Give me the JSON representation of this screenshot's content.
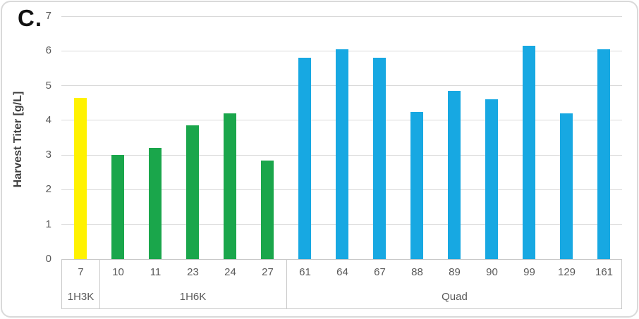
{
  "panel_label": "C.",
  "colors": {
    "grid": "#d9d9d9",
    "frame_border": "#d9d9d9",
    "box_border": "#c9c9c9",
    "axis_text": "#595959",
    "axis_title_text": "#3f3f3f",
    "group_1h3k": "#fff200",
    "group_1h6k": "#1aa64b",
    "group_quad": "#17a8e2"
  },
  "chart_data": {
    "type": "bar",
    "title": "",
    "xlabel": "",
    "ylabel": "Harvest Titer [g/L]",
    "ylim": [
      0,
      7
    ],
    "ytick_labels": [
      "0",
      "1",
      "2",
      "3",
      "4",
      "5",
      "6",
      "7"
    ],
    "grid": true,
    "legend": "none",
    "axis_style": "two-level category axis with group separator lines",
    "groups": [
      {
        "name": "1H3K",
        "color": "#fff200",
        "bars": [
          {
            "label": "7",
            "value": 4.65
          }
        ]
      },
      {
        "name": "1H6K",
        "color": "#1aa64b",
        "bars": [
          {
            "label": "10",
            "value": 3.0
          },
          {
            "label": "11",
            "value": 3.2
          },
          {
            "label": "23",
            "value": 3.85
          },
          {
            "label": "24",
            "value": 4.2
          },
          {
            "label": "27",
            "value": 2.85
          }
        ]
      },
      {
        "name": "Quad",
        "color": "#17a8e2",
        "bars": [
          {
            "label": "61",
            "value": 5.8
          },
          {
            "label": "64",
            "value": 6.05
          },
          {
            "label": "67",
            "value": 5.8
          },
          {
            "label": "88",
            "value": 4.25
          },
          {
            "label": "89",
            "value": 4.85
          },
          {
            "label": "90",
            "value": 4.6
          },
          {
            "label": "99",
            "value": 6.15
          },
          {
            "label": "129",
            "value": 4.2
          },
          {
            "label": "161",
            "value": 6.05
          }
        ]
      }
    ]
  }
}
